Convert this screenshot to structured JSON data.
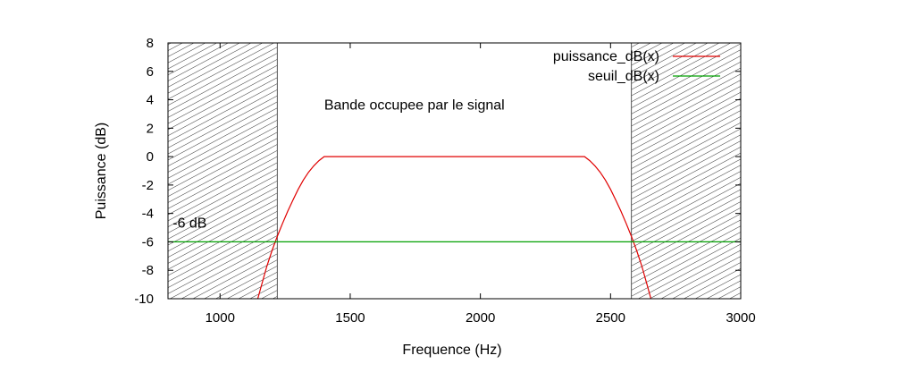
{
  "chart_data": {
    "type": "line",
    "xlabel": "Frequence (Hz)",
    "ylabel": "Puissance (dB)",
    "xlim": [
      800,
      3000
    ],
    "ylim": [
      -10,
      8
    ],
    "x_ticks": [
      1000,
      1500,
      2000,
      2500,
      3000
    ],
    "y_ticks": [
      8,
      6,
      4,
      2,
      0,
      -2,
      -4,
      -6,
      -8,
      -10
    ],
    "grid": false,
    "legend_position": "top-right",
    "series": [
      {
        "name": "puissance_dB(x)",
        "color": "#e00000",
        "x": [
          1145,
          1160,
          1180,
          1200,
          1220,
          1240,
          1260,
          1280,
          1300,
          1320,
          1340,
          1360,
          1380,
          1400,
          2400,
          2420,
          2440,
          2460,
          2480,
          2500,
          2520,
          2540,
          2560,
          2580,
          2600,
          2620,
          2640,
          2655
        ],
        "y": [
          -10,
          -9,
          -7.7,
          -6.6,
          -5.6,
          -4.7,
          -3.85,
          -3.05,
          -2.3,
          -1.65,
          -1.1,
          -0.65,
          -0.28,
          0,
          0,
          -0.28,
          -0.65,
          -1.1,
          -1.65,
          -2.3,
          -3.05,
          -3.85,
          -4.7,
          -5.6,
          -6.6,
          -7.7,
          -9,
          -10
        ]
      },
      {
        "name": "seuil_dB(x)",
        "color": "#00a000",
        "x": [
          800,
          3000
        ],
        "y": [
          -6,
          -6
        ]
      }
    ],
    "shaded_regions": [
      {
        "x": [
          800,
          1220
        ]
      },
      {
        "x": [
          2580,
          3000
        ]
      }
    ],
    "annotations": [
      {
        "text": "Bande occupee par le signal",
        "x": 1400,
        "y": 3.3
      },
      {
        "text": "-6 dB",
        "x": 818,
        "y": -5
      }
    ]
  }
}
